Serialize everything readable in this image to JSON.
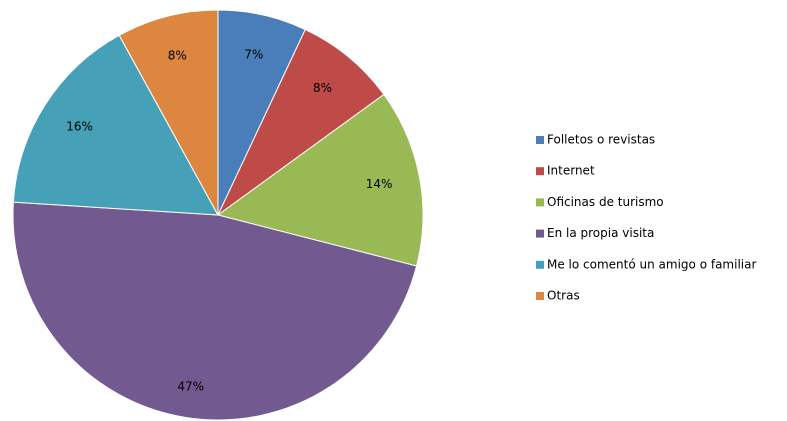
{
  "chart_data": {
    "type": "pie",
    "categories": [
      "Folletos o revistas",
      "Internet",
      "Oficinas de turismo",
      "En la propia visita",
      "Me lo comentó un amigo o familiar",
      "Otras"
    ],
    "values": [
      7,
      8,
      14,
      47,
      16,
      8
    ],
    "value_labels": [
      "7%",
      "8%",
      "14%",
      "47%",
      "16%",
      "8%"
    ],
    "colors": [
      "#4a7ebb",
      "#be4b48",
      "#98b954",
      "#72598f",
      "#46a0b8",
      "#dd8640"
    ],
    "legend": "right"
  }
}
